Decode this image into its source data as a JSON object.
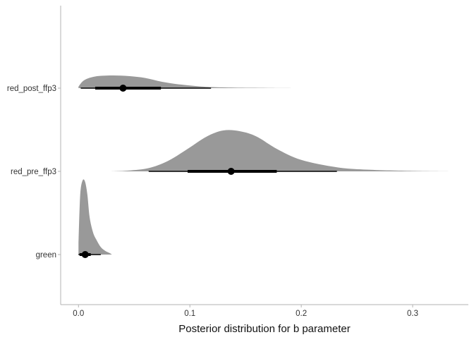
{
  "chart_data": {
    "type": "halfeye",
    "title": "",
    "xlabel": "Posterior distribution for b parameter",
    "ylabel": "",
    "xlim": [
      -0.016,
      0.35
    ],
    "xticks": [
      0.0,
      0.1,
      0.2,
      0.3
    ],
    "xtick_labels": [
      "0.0",
      "0.1",
      "0.2",
      "0.3"
    ],
    "grid": false,
    "legend": "none",
    "density_color": "#999999",
    "interval_color": "#000000",
    "categories": [
      "green",
      "red_pre_ffp3",
      "red_post_ffp3"
    ],
    "series": [
      {
        "category": "green",
        "point": 0.006,
        "interval_66": [
          0.001,
          0.011
        ],
        "interval_95": [
          0.0,
          0.02
        ],
        "density": [
          [
            0.0,
            0.15
          ],
          [
            0.001,
            0.62
          ],
          [
            0.002,
            0.88
          ],
          [
            0.004,
            1.0
          ],
          [
            0.006,
            0.97
          ],
          [
            0.008,
            0.8
          ],
          [
            0.01,
            0.5
          ],
          [
            0.013,
            0.3
          ],
          [
            0.016,
            0.2
          ],
          [
            0.02,
            0.1
          ],
          [
            0.024,
            0.05
          ],
          [
            0.028,
            0.02
          ],
          [
            0.03,
            0.0
          ]
        ]
      },
      {
        "category": "red_pre_ffp3",
        "point": 0.137,
        "interval_66": [
          0.098,
          0.178
        ],
        "interval_95": [
          0.063,
          0.232
        ],
        "density": [
          [
            0.028,
            0.0
          ],
          [
            0.045,
            0.02
          ],
          [
            0.063,
            0.08
          ],
          [
            0.08,
            0.25
          ],
          [
            0.098,
            0.55
          ],
          [
            0.115,
            0.85
          ],
          [
            0.13,
            1.0
          ],
          [
            0.145,
            0.98
          ],
          [
            0.16,
            0.85
          ],
          [
            0.178,
            0.55
          ],
          [
            0.2,
            0.28
          ],
          [
            0.232,
            0.1
          ],
          [
            0.26,
            0.04
          ],
          [
            0.3,
            0.01
          ],
          [
            0.335,
            0.0
          ]
        ]
      },
      {
        "category": "red_post_ffp3",
        "point": 0.04,
        "interval_66": [
          0.015,
          0.074
        ],
        "interval_95": [
          0.002,
          0.119
        ],
        "density": [
          [
            0.0,
            0.12
          ],
          [
            0.005,
            0.62
          ],
          [
            0.015,
            0.92
          ],
          [
            0.03,
            1.0
          ],
          [
            0.045,
            0.95
          ],
          [
            0.06,
            0.8
          ],
          [
            0.075,
            0.5
          ],
          [
            0.09,
            0.3
          ],
          [
            0.105,
            0.17
          ],
          [
            0.12,
            0.08
          ],
          [
            0.14,
            0.04
          ],
          [
            0.17,
            0.015
          ],
          [
            0.2,
            0.0
          ]
        ]
      }
    ]
  }
}
